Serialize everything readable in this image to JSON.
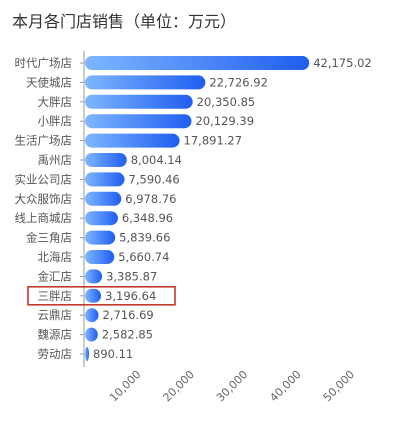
{
  "chart_data": {
    "type": "bar",
    "orientation": "horizontal",
    "title": "本月各门店销售（单位：万元）",
    "categories": [
      "时代广场店",
      "天使城店",
      "大胖店",
      "小胖店",
      "生活广场店",
      "禹州店",
      "实业公司店",
      "大众服饰店",
      "线上商城店",
      "金三角店",
      "北海店",
      "金汇店",
      "三胖店",
      "云鼎店",
      "魏源店",
      "劳动店"
    ],
    "values": [
      42175.02,
      22726.92,
      20350.85,
      20129.39,
      17891.27,
      8004.14,
      7590.46,
      6978.76,
      6348.96,
      5839.66,
      5660.74,
      3385.87,
      3196.64,
      2716.69,
      2582.85,
      890.11
    ],
    "value_labels": [
      "42,175.02",
      "22,726.92",
      "20,350.85",
      "20,129.39",
      "17,891.27",
      "8,004.14",
      "7,590.46",
      "6,978.76",
      "6,348.96",
      "5,839.66",
      "5,660.74",
      "3,385.87",
      "3,196.64",
      "2,716.69",
      "2,582.85",
      "890.11"
    ],
    "xlim": [
      0,
      50000
    ],
    "x_ticks": [
      10000,
      20000,
      30000,
      40000,
      50000
    ],
    "x_tick_labels": [
      "10,000",
      "20,000",
      "30,000",
      "40,000",
      "50,000"
    ],
    "highlighted_category": "三胖店",
    "grid": false,
    "colors": {
      "bar_start": "#7eb6ff",
      "bar_end": "#1f5ef0",
      "highlight_border": "#c0392b",
      "axis": "#999999"
    }
  }
}
